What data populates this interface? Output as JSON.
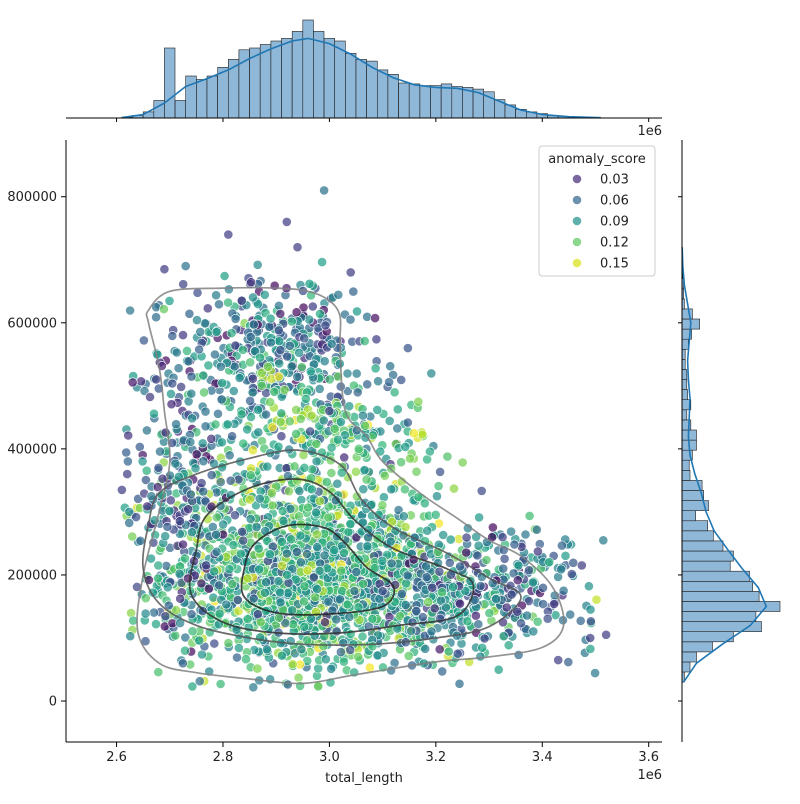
{
  "chart_data": {
    "type": "scatter",
    "subtype": "jointplot with marginal histograms, KDE density contours and hue legend",
    "xlabel": "total_length",
    "ylabel": "",
    "x_offset_label": "1e6",
    "x_units": "1e6",
    "xlim": [
      2.505,
      3.625
    ],
    "ylim": [
      -65000,
      890000
    ],
    "x_ticks": [
      2.6,
      2.8,
      3.0,
      3.2,
      3.4,
      3.6
    ],
    "x_tick_labels": [
      "2.6",
      "2.8",
      "3.0",
      "3.2",
      "3.4",
      "3.6"
    ],
    "y_ticks": [
      0,
      200000,
      400000,
      600000,
      800000
    ],
    "y_tick_labels": [
      "0",
      "200000",
      "400000",
      "600000",
      "800000"
    ],
    "grid": false,
    "legend": {
      "title": "anomaly_score",
      "placement": "top-right",
      "entries": [
        {
          "label": "0.03",
          "color": "#472d7b"
        },
        {
          "label": "0.06",
          "color": "#31688e"
        },
        {
          "label": "0.09",
          "color": "#21918c"
        },
        {
          "label": "0.12",
          "color": "#5ec962"
        },
        {
          "label": "0.15",
          "color": "#d8e219"
        }
      ]
    },
    "colormap": "viridis",
    "hue_range": [
      0.0,
      0.16
    ],
    "point_clusters": [
      {
        "cx": 2.95,
        "cy": 210000,
        "sx": 0.13,
        "sy": 85000,
        "n": 1200,
        "hue_mean": 0.1
      },
      {
        "cx": 3.05,
        "cy": 170000,
        "sx": 0.17,
        "sy": 55000,
        "n": 700,
        "hue_mean": 0.09
      },
      {
        "cx": 2.88,
        "cy": 560000,
        "sx": 0.09,
        "sy": 55000,
        "n": 350,
        "hue_mean": 0.06
      },
      {
        "cx": 2.98,
        "cy": 440000,
        "sx": 0.1,
        "sy": 50000,
        "n": 250,
        "hue_mean": 0.1
      },
      {
        "cx": 2.72,
        "cy": 330000,
        "sx": 0.05,
        "sy": 120000,
        "n": 250,
        "hue_mean": 0.05
      },
      {
        "cx": 3.3,
        "cy": 180000,
        "sx": 0.1,
        "sy": 50000,
        "n": 250,
        "hue_mean": 0.06
      }
    ],
    "outliers": [
      {
        "x": 2.99,
        "y": 810000,
        "hue": 0.06
      },
      {
        "x": 2.92,
        "y": 760000,
        "hue": 0.03
      },
      {
        "x": 2.81,
        "y": 740000,
        "hue": 0.03
      },
      {
        "x": 2.94,
        "y": 720000,
        "hue": 0.03
      },
      {
        "x": 2.69,
        "y": 685000,
        "hue": 0.03
      },
      {
        "x": 3.04,
        "y": 680000,
        "hue": 0.03
      },
      {
        "x": 2.73,
        "y": 690000,
        "hue": 0.06
      },
      {
        "x": 2.62,
        "y": 360000,
        "hue": 0.03
      },
      {
        "x": 2.61,
        "y": 335000,
        "hue": 0.03
      },
      {
        "x": 3.49,
        "y": 100000,
        "hue": 0.03
      },
      {
        "x": 3.52,
        "y": 105000,
        "hue": 0.03
      },
      {
        "x": 3.43,
        "y": 65000,
        "hue": 0.03
      },
      {
        "x": 3.44,
        "y": 175000,
        "hue": 0.06
      },
      {
        "x": 3.0,
        "y": 460000,
        "hue": 0.03
      }
    ],
    "kde_contours": [
      {
        "level": 1,
        "color": "#808080",
        "points": [
          [
            2.66,
            620000
          ],
          [
            2.7,
            650000
          ],
          [
            2.8,
            655000
          ],
          [
            2.9,
            655000
          ],
          [
            2.96,
            650000
          ],
          [
            3.0,
            635000
          ],
          [
            3.02,
            610000
          ],
          [
            3.02,
            560000
          ],
          [
            3.03,
            460000
          ],
          [
            3.07,
            420000
          ],
          [
            3.1,
            380000
          ],
          [
            3.17,
            330000
          ],
          [
            3.24,
            290000
          ],
          [
            3.3,
            255000
          ],
          [
            3.36,
            230000
          ],
          [
            3.42,
            180000
          ],
          [
            3.44,
            120000
          ],
          [
            3.4,
            85000
          ],
          [
            3.3,
            70000
          ],
          [
            3.2,
            62000
          ],
          [
            3.05,
            42000
          ],
          [
            2.95,
            28000
          ],
          [
            2.85,
            35000
          ],
          [
            2.75,
            45000
          ],
          [
            2.68,
            60000
          ],
          [
            2.64,
            110000
          ],
          [
            2.65,
            200000
          ],
          [
            2.68,
            300000
          ],
          [
            2.7,
            380000
          ],
          [
            2.69,
            460000
          ],
          [
            2.68,
            530000
          ],
          [
            2.66,
            600000
          ]
        ]
      },
      {
        "level": 2,
        "color": "#555555",
        "points": [
          [
            2.68,
            330000
          ],
          [
            2.75,
            360000
          ],
          [
            2.85,
            385000
          ],
          [
            2.94,
            398000
          ],
          [
            3.02,
            375000
          ],
          [
            3.06,
            320000
          ],
          [
            3.12,
            275000
          ],
          [
            3.22,
            235000
          ],
          [
            3.3,
            195000
          ],
          [
            3.36,
            165000
          ],
          [
            3.3,
            118000
          ],
          [
            3.2,
            100000
          ],
          [
            3.08,
            90000
          ],
          [
            2.95,
            90000
          ],
          [
            2.85,
            100000
          ],
          [
            2.75,
            120000
          ],
          [
            2.68,
            155000
          ],
          [
            2.65,
            210000
          ],
          [
            2.66,
            280000
          ]
        ]
      },
      {
        "level": 3,
        "color": "#333333",
        "points": [
          [
            2.77,
            295000
          ],
          [
            2.85,
            338000
          ],
          [
            2.94,
            352000
          ],
          [
            3.0,
            332000
          ],
          [
            3.05,
            285000
          ],
          [
            3.12,
            242000
          ],
          [
            3.22,
            210000
          ],
          [
            3.27,
            185000
          ],
          [
            3.24,
            135000
          ],
          [
            3.13,
            120000
          ],
          [
            3.02,
            108000
          ],
          [
            2.9,
            108000
          ],
          [
            2.8,
            125000
          ],
          [
            2.74,
            170000
          ],
          [
            2.75,
            240000
          ]
        ]
      },
      {
        "level": 4,
        "color": "#222222",
        "points": [
          [
            2.86,
            250000
          ],
          [
            2.92,
            278000
          ],
          [
            2.99,
            275000
          ],
          [
            3.03,
            250000
          ],
          [
            3.07,
            212000
          ],
          [
            3.12,
            182000
          ],
          [
            3.1,
            150000
          ],
          [
            3.0,
            138000
          ],
          [
            2.9,
            140000
          ],
          [
            2.84,
            165000
          ],
          [
            2.84,
            210000
          ]
        ]
      }
    ],
    "marginal_x_histogram": {
      "bin_edges": [
        2.61,
        2.63,
        2.65,
        2.67,
        2.69,
        2.71,
        2.73,
        2.75,
        2.77,
        2.79,
        2.81,
        2.83,
        2.85,
        2.87,
        2.89,
        2.91,
        2.93,
        2.95,
        2.97,
        2.99,
        3.01,
        3.03,
        3.05,
        3.07,
        3.09,
        3.11,
        3.13,
        3.15,
        3.17,
        3.19,
        3.21,
        3.23,
        3.25,
        3.27,
        3.29,
        3.31,
        3.33,
        3.35,
        3.37,
        3.39,
        3.41,
        3.43,
        3.45,
        3.47,
        3.49,
        3.51
      ],
      "counts": [
        1,
        3,
        7,
        20,
        80,
        20,
        48,
        44,
        48,
        58,
        67,
        78,
        80,
        84,
        88,
        91,
        99,
        112,
        99,
        91,
        88,
        74,
        67,
        65,
        55,
        50,
        40,
        39,
        37,
        37,
        39,
        36,
        35,
        33,
        30,
        21,
        15,
        10,
        7,
        5,
        3,
        2,
        1,
        1,
        0
      ],
      "kde": [
        [
          2.61,
          0.5
        ],
        [
          2.65,
          4
        ],
        [
          2.69,
          17
        ],
        [
          2.73,
          36
        ],
        [
          2.77,
          45
        ],
        [
          2.81,
          55
        ],
        [
          2.85,
          68
        ],
        [
          2.89,
          79
        ],
        [
          2.93,
          88
        ],
        [
          2.96,
          91
        ],
        [
          3.0,
          85
        ],
        [
          3.04,
          73
        ],
        [
          3.08,
          58
        ],
        [
          3.12,
          46
        ],
        [
          3.16,
          38
        ],
        [
          3.2,
          35
        ],
        [
          3.24,
          34
        ],
        [
          3.28,
          29
        ],
        [
          3.32,
          19
        ],
        [
          3.36,
          9
        ],
        [
          3.4,
          4
        ],
        [
          3.45,
          1.5
        ],
        [
          3.51,
          0.3
        ]
      ]
    },
    "marginal_y_histogram": {
      "bin_edges": [
        30000,
        46000,
        62000,
        78000,
        94000,
        110000,
        126000,
        142000,
        158000,
        174000,
        190000,
        206000,
        222000,
        238000,
        254000,
        270000,
        286000,
        302000,
        318000,
        334000,
        350000,
        366000,
        382000,
        398000,
        414000,
        430000,
        446000,
        462000,
        478000,
        494000,
        510000,
        526000,
        542000,
        558000,
        574000,
        590000,
        606000,
        622000,
        638000,
        654000,
        670000,
        686000,
        702000
      ],
      "counts": [
        3,
        10,
        18,
        38,
        64,
        99,
        92,
        122,
        96,
        88,
        84,
        60,
        64,
        51,
        39,
        32,
        17,
        33,
        27,
        25,
        10,
        9,
        13,
        18,
        18,
        11,
        6,
        11,
        7,
        6,
        6,
        4,
        4,
        8,
        12,
        22,
        13,
        3,
        2,
        2,
        1,
        1
      ],
      "kde": [
        [
          30000,
          2
        ],
        [
          60000,
          18
        ],
        [
          90000,
          50
        ],
        [
          120000,
          85
        ],
        [
          150000,
          105
        ],
        [
          180000,
          95
        ],
        [
          210000,
          75
        ],
        [
          240000,
          57
        ],
        [
          270000,
          40
        ],
        [
          300000,
          30
        ],
        [
          330000,
          24
        ],
        [
          360000,
          16
        ],
        [
          390000,
          10
        ],
        [
          420000,
          8
        ],
        [
          450000,
          9
        ],
        [
          480000,
          10
        ],
        [
          510000,
          8
        ],
        [
          540000,
          7
        ],
        [
          570000,
          9
        ],
        [
          600000,
          11
        ],
        [
          630000,
          7
        ],
        [
          660000,
          3
        ],
        [
          690000,
          1
        ],
        [
          720000,
          0.3
        ]
      ]
    },
    "colors": {
      "marginal_bar_fill": "#8fb7d8",
      "marginal_bar_edge": "#1f1f1f",
      "marginal_kde": "#1f77b4",
      "contour": "#404040"
    }
  }
}
